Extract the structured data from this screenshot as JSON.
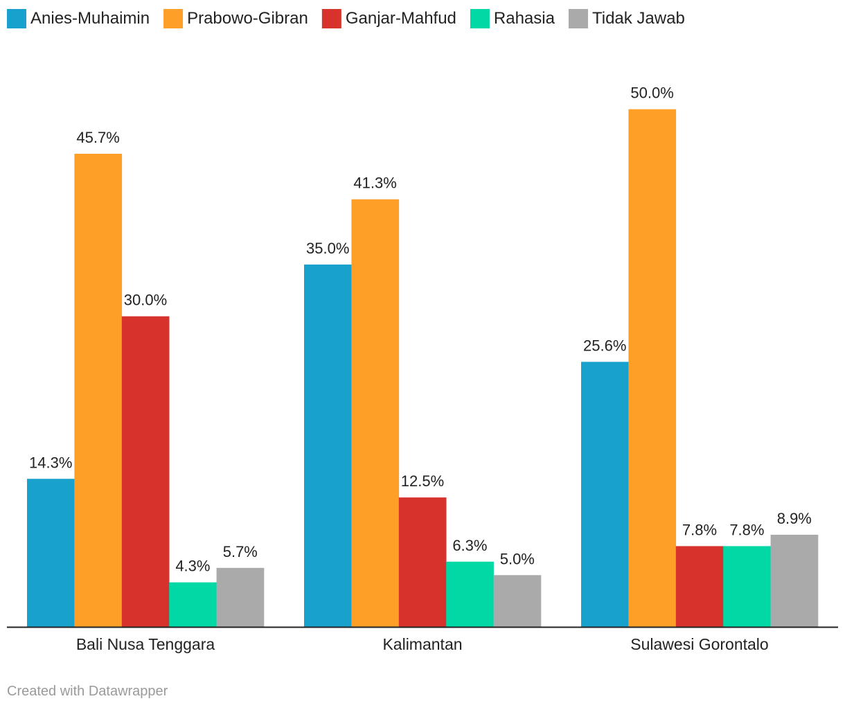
{
  "credit": "Created with Datawrapper",
  "chart_data": {
    "type": "bar",
    "title": "",
    "xlabel": "",
    "ylabel": "",
    "ylim": [
      0,
      56
    ],
    "grid": false,
    "legend_position": "top-left",
    "value_suffix": "%",
    "categories": [
      "Bali Nusa Tenggara",
      "Kalimantan",
      "Sulawesi Gorontalo"
    ],
    "series": [
      {
        "name": "Anies-Muhaimin",
        "color": "#18a1cd",
        "values": [
          14.3,
          35.0,
          25.6
        ],
        "labels": [
          "14.3%",
          "35.0%",
          "25.6%"
        ]
      },
      {
        "name": "Prabowo-Gibran",
        "color": "#fe9f27",
        "values": [
          45.7,
          41.3,
          50.0
        ],
        "labels": [
          "45.7%",
          "41.3%",
          "50.0%"
        ]
      },
      {
        "name": "Ganjar-Mahfud",
        "color": "#d8322d",
        "values": [
          30.0,
          12.5,
          7.8
        ],
        "labels": [
          "30.0%",
          "12.5%",
          "7.8%"
        ]
      },
      {
        "name": "Rahasia",
        "color": "#00d9a6",
        "values": [
          4.3,
          6.3,
          7.8
        ],
        "labels": [
          "4.3%",
          "6.3%",
          "7.8%"
        ]
      },
      {
        "name": "Tidak Jawab",
        "color": "#aaaaaa",
        "values": [
          5.7,
          5.0,
          8.9
        ],
        "labels": [
          "5.7%",
          "5.0%",
          "8.9%"
        ]
      }
    ]
  }
}
